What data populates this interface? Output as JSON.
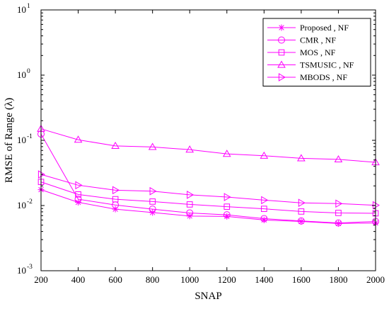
{
  "chart_data": {
    "type": "line",
    "xlabel": "SNAP",
    "ylabel": "RMSE  of  Range (λ)",
    "x": [
      200,
      400,
      600,
      800,
      1000,
      1200,
      1400,
      1600,
      1800,
      2000
    ],
    "xlim": [
      200,
      2000
    ],
    "xticks": [
      "200",
      "400",
      "600",
      "800",
      "1000",
      "1200",
      "1400",
      "1600",
      "1800",
      "2000"
    ],
    "yscale": "log",
    "ylim": [
      0.001,
      10
    ],
    "yticks": [
      {
        "base": "10",
        "exp": "-3"
      },
      {
        "base": "10",
        "exp": "-2"
      },
      {
        "base": "10",
        "exp": "-1"
      },
      {
        "base": "10",
        "exp": "0"
      },
      {
        "base": "10",
        "exp": "1"
      }
    ],
    "grid": false,
    "legend_position": "top-right",
    "line_color": "#ff00ff",
    "series": [
      {
        "name": "Proposed , NF",
        "marker": "asterisk",
        "values": [
          0.0175,
          0.0112,
          0.0088,
          0.0078,
          0.0069,
          0.0068,
          0.006,
          0.0057,
          0.0053,
          0.0054
        ]
      },
      {
        "name": "CMR , NF",
        "marker": "circle",
        "values": [
          0.125,
          0.0125,
          0.0102,
          0.0088,
          0.0077,
          0.0072,
          0.0063,
          0.0058,
          0.0054,
          0.0057
        ]
      },
      {
        "name": "MOS , NF",
        "marker": "square",
        "values": [
          0.023,
          0.0148,
          0.0125,
          0.0115,
          0.0104,
          0.0096,
          0.0089,
          0.0081,
          0.0077,
          0.0076
        ]
      },
      {
        "name": "TSMUSIC , NF",
        "marker": "triangle-up",
        "values": [
          0.15,
          0.102,
          0.082,
          0.079,
          0.072,
          0.062,
          0.058,
          0.053,
          0.051,
          0.046
        ]
      },
      {
        "name": "MBODS , NF",
        "marker": "triangle-right",
        "values": [
          0.03,
          0.0205,
          0.0172,
          0.0166,
          0.0146,
          0.0135,
          0.0121,
          0.011,
          0.0107,
          0.0101
        ]
      }
    ]
  }
}
